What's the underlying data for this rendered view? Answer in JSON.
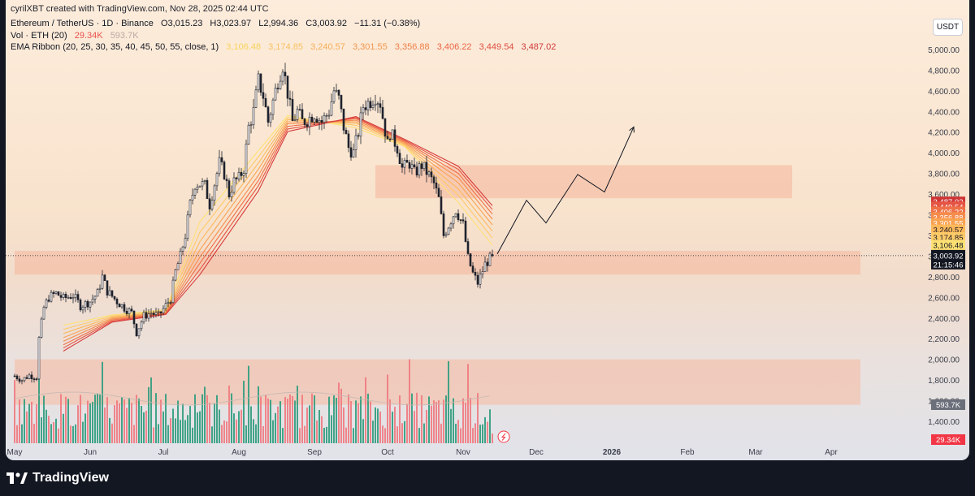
{
  "attribution": "cyrilXBT created with TradingView.com, Nov 28, 2025 02:44 UTC",
  "legend": {
    "symbol": "Ethereum / TetherUS · 1D · Binance",
    "open": "O3,015.23",
    "high": "H3,023.97",
    "low": "L2,994.36",
    "close": "C3,003.92",
    "change": "−11.31 (−0.38%)",
    "volume_label": "Vol · ETH (20)",
    "volume_value": "29.34K",
    "volume_ma": "593.7K",
    "ema_label": "EMA Ribbon (20, 25, 30, 35, 40, 45, 50, 55, close, 1)",
    "ema_values": [
      "3,106.48",
      "3,174.85",
      "3,240.57",
      "3,301.55",
      "3,356.88",
      "3,406.22",
      "3,449.54",
      "3,487.02"
    ]
  },
  "currency": "USDT",
  "brand": "TradingView",
  "colors": {
    "up": "#089981",
    "down": "#f23645",
    "ema": [
      "#ffe173",
      "#ffca68",
      "#fdb85c",
      "#f9a252",
      "#f58b4c",
      "#ee7048",
      "#e55543",
      "#d63b3b"
    ],
    "zone": "#f5b9a0"
  },
  "chart_data": {
    "type": "candlestick",
    "symbol": "ETHUSDT",
    "interval": "1D",
    "ylim": [
      1300,
      5200
    ],
    "y_ticks": [
      "1,400.00",
      "1,600.00",
      "1,800.00",
      "2,000.00",
      "2,200.00",
      "2,400.00",
      "2,600.00",
      "2,800.00",
      "3,000.00",
      "3,200.00",
      "3,400.00",
      "3,600.00",
      "3,800.00",
      "4,000.00",
      "4,200.00",
      "4,400.00",
      "4,600.00",
      "4,800.00",
      "5,000.00"
    ],
    "x_ticks": [
      {
        "label": "May",
        "day": 0
      },
      {
        "label": "Jun",
        "day": 31
      },
      {
        "label": "Jul",
        "day": 61
      },
      {
        "label": "Aug",
        "day": 92
      },
      {
        "label": "Sep",
        "day": 123
      },
      {
        "label": "Oct",
        "day": 153
      },
      {
        "label": "Nov",
        "day": 184
      },
      {
        "label": "Dec",
        "day": 214
      },
      {
        "label": "2026",
        "day": 245
      },
      {
        "label": "Feb",
        "day": 276
      },
      {
        "label": "Mar",
        "day": 304
      },
      {
        "label": "Apr",
        "day": 335
      }
    ],
    "last_price": "3,003.92",
    "countdown": "21:15:46",
    "price_anchors": [
      [
        0,
        1840
      ],
      [
        3,
        1800
      ],
      [
        6,
        1845
      ],
      [
        9,
        1830
      ],
      [
        10,
        2200
      ],
      [
        12,
        2500
      ],
      [
        14,
        2600
      ],
      [
        17,
        2640
      ],
      [
        20,
        2590
      ],
      [
        24,
        2620
      ],
      [
        27,
        2520
      ],
      [
        31,
        2560
      ],
      [
        34,
        2640
      ],
      [
        36,
        2800
      ],
      [
        38,
        2660
      ],
      [
        42,
        2560
      ],
      [
        45,
        2500
      ],
      [
        48,
        2450
      ],
      [
        50,
        2260
      ],
      [
        53,
        2420
      ],
      [
        56,
        2450
      ],
      [
        59,
        2420
      ],
      [
        62,
        2520
      ],
      [
        64,
        2590
      ],
      [
        66,
        2850
      ],
      [
        68,
        3000
      ],
      [
        70,
        3200
      ],
      [
        72,
        3500
      ],
      [
        74,
        3700
      ],
      [
        76,
        3700
      ],
      [
        78,
        3680
      ],
      [
        80,
        3500
      ],
      [
        82,
        3700
      ],
      [
        84,
        3900
      ],
      [
        86,
        3800
      ],
      [
        88,
        3600
      ],
      [
        90,
        3720
      ],
      [
        92,
        3750
      ],
      [
        94,
        3850
      ],
      [
        96,
        4250
      ],
      [
        98,
        4400
      ],
      [
        100,
        4700
      ],
      [
        102,
        4550
      ],
      [
        104,
        4300
      ],
      [
        106,
        4500
      ],
      [
        108,
        4700
      ],
      [
        110,
        4850
      ],
      [
        112,
        4580
      ],
      [
        114,
        4300
      ],
      [
        116,
        4400
      ],
      [
        118,
        4300
      ],
      [
        120,
        4320
      ],
      [
        123,
        4380
      ],
      [
        126,
        4300
      ],
      [
        129,
        4400
      ],
      [
        131,
        4600
      ],
      [
        133,
        4520
      ],
      [
        135,
        4250
      ],
      [
        137,
        4050
      ],
      [
        139,
        4000
      ],
      [
        141,
        4200
      ],
      [
        143,
        4450
      ],
      [
        146,
        4500
      ],
      [
        148,
        4550
      ],
      [
        150,
        4480
      ],
      [
        153,
        4080
      ],
      [
        154,
        4200
      ],
      [
        157,
        4050
      ],
      [
        159,
        3850
      ],
      [
        162,
        3900
      ],
      [
        164,
        3800
      ],
      [
        167,
        3880
      ],
      [
        170,
        3780
      ],
      [
        172,
        3700
      ],
      [
        174,
        3550
      ],
      [
        176,
        3200
      ],
      [
        178,
        3300
      ],
      [
        181,
        3450
      ],
      [
        184,
        3300
      ],
      [
        186,
        2980
      ],
      [
        188,
        2830
      ],
      [
        190,
        2740
      ],
      [
        193,
        2920
      ],
      [
        196,
        3003.92
      ]
    ],
    "ema_series": [
      {
        "name": "EMA 20",
        "values": [
          [
            20,
            2330
          ],
          [
            40,
            2430
          ],
          [
            62,
            2480
          ],
          [
            76,
            3330
          ],
          [
            100,
            4020
          ],
          [
            112,
            4360
          ],
          [
            140,
            4240
          ],
          [
            160,
            4060
          ],
          [
            182,
            3520
          ],
          [
            196,
            3106.48
          ]
        ]
      },
      {
        "name": "EMA 25",
        "values": [
          [
            20,
            2290
          ],
          [
            40,
            2420
          ],
          [
            62,
            2470
          ],
          [
            76,
            3230
          ],
          [
            100,
            3960
          ],
          [
            112,
            4340
          ],
          [
            140,
            4265
          ],
          [
            160,
            4070
          ],
          [
            182,
            3590
          ],
          [
            196,
            3174.85
          ]
        ]
      },
      {
        "name": "EMA 30",
        "values": [
          [
            20,
            2250
          ],
          [
            40,
            2410
          ],
          [
            62,
            2460
          ],
          [
            76,
            3140
          ],
          [
            100,
            3900
          ],
          [
            112,
            4320
          ],
          [
            140,
            4285
          ],
          [
            160,
            4080
          ],
          [
            182,
            3650
          ],
          [
            196,
            3240.57
          ]
        ]
      },
      {
        "name": "EMA 35",
        "values": [
          [
            20,
            2210
          ],
          [
            40,
            2400
          ],
          [
            62,
            2455
          ],
          [
            76,
            3060
          ],
          [
            100,
            3840
          ],
          [
            112,
            4300
          ],
          [
            140,
            4300
          ],
          [
            160,
            4090
          ],
          [
            182,
            3710
          ],
          [
            196,
            3301.55
          ]
        ]
      },
      {
        "name": "EMA 40",
        "values": [
          [
            20,
            2175
          ],
          [
            40,
            2390
          ],
          [
            62,
            2450
          ],
          [
            76,
            2990
          ],
          [
            100,
            3780
          ],
          [
            112,
            4280
          ],
          [
            140,
            4315
          ],
          [
            160,
            4100
          ],
          [
            182,
            3760
          ],
          [
            196,
            3356.88
          ]
        ]
      },
      {
        "name": "EMA 45",
        "values": [
          [
            20,
            2140
          ],
          [
            40,
            2380
          ],
          [
            62,
            2445
          ],
          [
            76,
            2930
          ],
          [
            100,
            3730
          ],
          [
            112,
            4255
          ],
          [
            140,
            4330
          ],
          [
            160,
            4110
          ],
          [
            182,
            3800
          ],
          [
            196,
            3406.22
          ]
        ]
      },
      {
        "name": "EMA 50",
        "values": [
          [
            20,
            2110
          ],
          [
            40,
            2370
          ],
          [
            62,
            2440
          ],
          [
            76,
            2870
          ],
          [
            100,
            3680
          ],
          [
            112,
            4230
          ],
          [
            140,
            4340
          ],
          [
            160,
            4120
          ],
          [
            182,
            3840
          ],
          [
            196,
            3449.54
          ]
        ]
      },
      {
        "name": "EMA 55",
        "values": [
          [
            20,
            2080
          ],
          [
            40,
            2360
          ],
          [
            62,
            2435
          ],
          [
            76,
            2820
          ],
          [
            100,
            3630
          ],
          [
            112,
            4205
          ],
          [
            140,
            4350
          ],
          [
            160,
            4130
          ],
          [
            182,
            3870
          ],
          [
            196,
            3487.02
          ]
        ]
      }
    ],
    "zones": [
      {
        "day_from": 148,
        "day_to": 319,
        "y_from": 3560,
        "y_to": 3880
      },
      {
        "day_from": 0,
        "day_to": 347,
        "y_from": 2820,
        "y_to": 3050
      },
      {
        "day_from": 0,
        "day_to": 347,
        "y_from": 1560,
        "y_to": 2000
      }
    ],
    "projection": [
      [
        198,
        3020
      ],
      [
        210,
        3540
      ],
      [
        218,
        3320
      ],
      [
        231,
        3790
      ],
      [
        242,
        3620
      ],
      [
        254,
        4250
      ]
    ]
  }
}
